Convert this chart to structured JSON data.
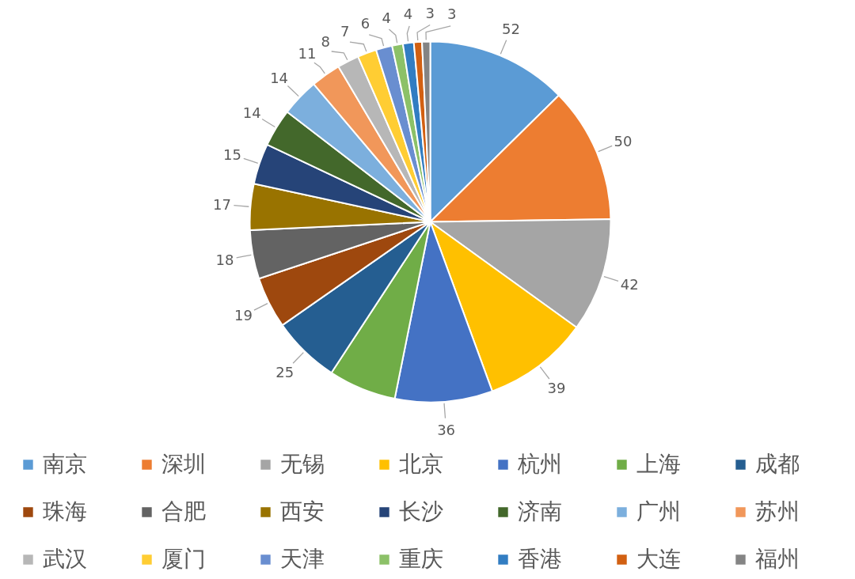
{
  "chart_data": {
    "type": "pie",
    "categories": [
      "南京",
      "深圳",
      "无锡",
      "北京",
      "杭州",
      "上海",
      "成都",
      "珠海",
      "合肥",
      "西安",
      "长沙",
      "济南",
      "广州",
      "苏州",
      "武汉",
      "厦门",
      "天津",
      "重庆",
      "香港",
      "大连",
      "福州"
    ],
    "values": [
      52,
      50,
      42,
      39,
      36,
      25,
      25,
      19,
      18,
      17,
      15,
      14,
      14,
      11,
      8,
      7,
      6,
      4,
      4,
      3,
      3
    ],
    "value_labels": [
      "52",
      "50",
      "42",
      "39",
      "36",
      null,
      "25",
      "19",
      "18",
      "17",
      "15",
      "14",
      "14",
      "11",
      "8",
      "7",
      "6",
      "4",
      "4",
      "3",
      "3"
    ],
    "colors": [
      "#5b9bd5",
      "#ed7d31",
      "#a5a5a5",
      "#ffc000",
      "#4472c4",
      "#70ad47",
      "#255e91",
      "#9e480e",
      "#636363",
      "#997300",
      "#264478",
      "#43682b",
      "#7cafdd",
      "#f1975a",
      "#b7b7b7",
      "#ffcd33",
      "#698ed0",
      "#8cc168",
      "#327dc2",
      "#d26012",
      "#848484"
    ],
    "legend": "bottom"
  }
}
